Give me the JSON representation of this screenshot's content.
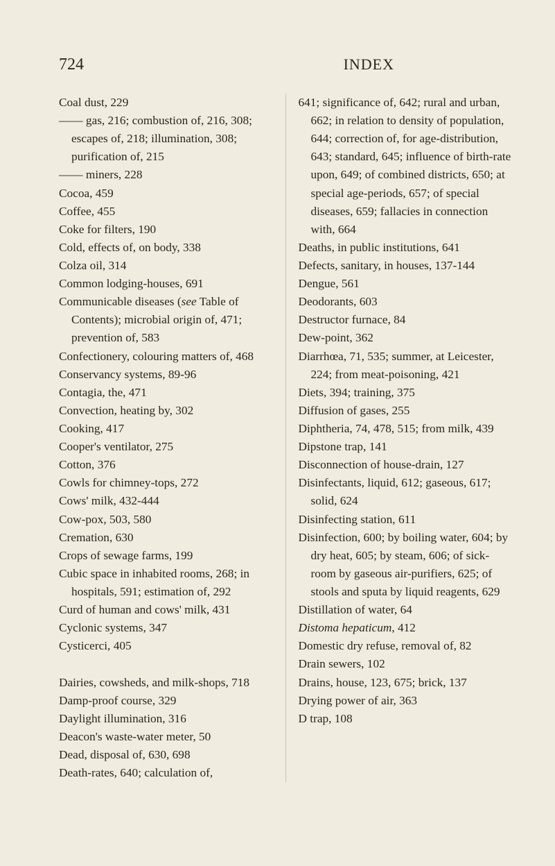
{
  "page_number": "724",
  "page_title": "INDEX",
  "left_entries": [
    "Coal dust, 229",
    "—— gas, 216; combustion of, 216, 308; escapes of, 218; illumination, 308; purification of, 215",
    "—— miners, 228",
    "Cocoa, 459",
    "Coffee, 455",
    "Coke for filters, 190",
    "Cold, effects of, on body, 338",
    "Colza oil, 314",
    "Common lodging-houses, 691",
    "Communicable diseases (<i>see</i> Table of Contents); microbial origin of, 471; prevention of, 583",
    "Confectionery, colouring matters of, 468",
    "Conservancy systems, 89-96",
    "Contagia, the, 471",
    "Convection, heating by, 302",
    "Cooking, 417",
    "Cooper's ventilator, 275",
    "Cotton, 376",
    "Cowls for chimney-tops, 272",
    "Cows' milk, 432-444",
    "Cow-pox, 503, 580",
    "Cremation, 630",
    "Crops of sewage farms, 199",
    "Cubic space in inhabited rooms, 268; in hospitals, 591; estimation of, 292",
    "Curd of human and cows' milk, 431",
    "Cyclonic systems, 347",
    "Cysticerci, 405",
    "",
    "Dairies, cowsheds, and milk-shops, 718",
    "Damp-proof course, 329",
    "Daylight illumination, 316",
    "Deacon's waste-water meter, 50",
    "Dead, disposal of, 630, 698",
    "Death-rates, 640; calculation of,"
  ],
  "right_entries": [
    "641; significance of, 642; rural and urban, 662; in relation to density of population, 644; correction of, for age-distribution, 643; standard, 645; influence of birth-rate upon, 649; of combined districts, 650; at special age-periods, 657; of special diseases, 659; fallacies in connection with, 664",
    "Deaths, in public institutions, 641",
    "Defects, sanitary, in houses, 137-144",
    "Dengue, 561",
    "Deodorants, 603",
    "Destructor furnace, 84",
    "Dew-point, 362",
    "Diarrhœa, 71, 535; summer, at Leicester, 224; from meat-poisoning, 421",
    "Diets, 394; training, 375",
    "Diffusion of gases, 255",
    "Diphtheria, 74, 478, 515; from milk, 439",
    "Dipstone trap, 141",
    "Disconnection of house-drain, 127",
    "Disinfectants, liquid, 612; gaseous, 617; solid, 624",
    "Disinfecting station, 611",
    "Disinfection, 600; by boiling water, 604; by dry heat, 605; by steam, 606; of sick-room by gaseous air-purifiers, 625; of stools and sputa by liquid reagents, 629",
    "Distillation of water, 64",
    "<span class=\"italic\">Distoma hepaticum</span>, 412",
    "Domestic dry refuse, removal of, 82",
    "Drain sewers, 102",
    "Drains, house, 123, 675; brick, 137",
    "Drying power of air, 363",
    "D trap, 108"
  ],
  "colors": {
    "background": "#f0ece0",
    "text": "#2a271f",
    "sep": "#7a715f"
  },
  "font_family": "Georgia, 'Times New Roman', serif"
}
